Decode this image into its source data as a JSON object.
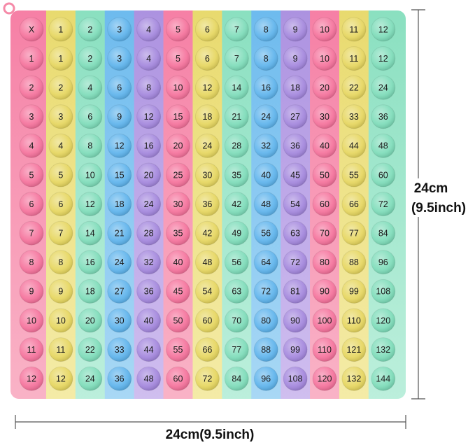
{
  "table": {
    "rows": [
      [
        "X",
        1,
        2,
        3,
        4,
        5,
        6,
        7,
        8,
        9,
        10,
        11,
        12
      ],
      [
        1,
        1,
        2,
        3,
        4,
        5,
        6,
        7,
        8,
        9,
        10,
        11,
        12
      ],
      [
        2,
        2,
        4,
        6,
        8,
        10,
        12,
        14,
        16,
        18,
        20,
        22,
        24
      ],
      [
        3,
        3,
        6,
        9,
        12,
        15,
        18,
        21,
        24,
        27,
        30,
        33,
        36
      ],
      [
        4,
        4,
        8,
        12,
        16,
        20,
        24,
        28,
        32,
        36,
        40,
        44,
        48
      ],
      [
        5,
        5,
        10,
        15,
        20,
        25,
        30,
        35,
        40,
        45,
        50,
        55,
        60
      ],
      [
        6,
        6,
        12,
        18,
        24,
        30,
        36,
        42,
        48,
        54,
        60,
        66,
        72
      ],
      [
        7,
        7,
        14,
        21,
        28,
        35,
        42,
        49,
        56,
        63,
        70,
        77,
        84
      ],
      [
        8,
        8,
        16,
        24,
        32,
        40,
        48,
        56,
        64,
        72,
        80,
        88,
        96
      ],
      [
        9,
        9,
        18,
        27,
        36,
        45,
        54,
        63,
        72,
        81,
        90,
        99,
        108
      ],
      [
        10,
        10,
        20,
        30,
        40,
        50,
        60,
        70,
        80,
        90,
        100,
        110,
        120
      ],
      [
        11,
        11,
        22,
        33,
        44,
        55,
        66,
        77,
        88,
        99,
        110,
        121,
        132
      ],
      [
        12,
        12,
        24,
        36,
        48,
        60,
        72,
        84,
        96,
        108,
        120,
        132,
        144
      ]
    ]
  },
  "dimensions": {
    "height_cm": "24cm",
    "height_inch": "(9.5inch)",
    "width": "24cm(9.5inch)"
  }
}
